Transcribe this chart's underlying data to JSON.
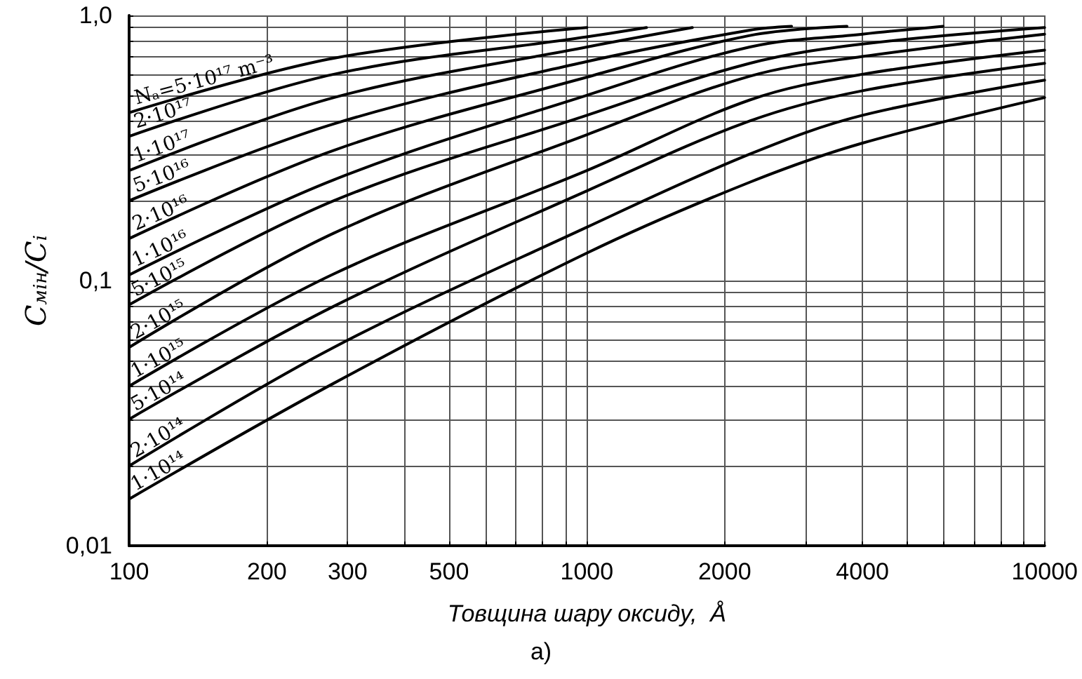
{
  "chart_data": {
    "type": "line",
    "xlabel": "Товщина шару оксиду,  Å",
    "ylabel": "C$_{мін}$/C$_{i}$",
    "annotations": [
      "а)"
    ],
    "log": "xy",
    "grid": true,
    "marker": "none",
    "legend": false,
    "xlim": [
      100,
      10000
    ],
    "ylim": [
      0.01,
      1
    ],
    "xticks": [
      100,
      200,
      300,
      {
        "value": 400,
        "label": null
      },
      500,
      {
        "value": 600,
        "label": null
      },
      {
        "value": 700,
        "label": null
      },
      {
        "value": 800,
        "label": null
      },
      {
        "value": 900,
        "label": null
      },
      1000,
      2000,
      {
        "value": 3000,
        "label": null
      },
      4000,
      {
        "value": 5000,
        "label": null
      },
      {
        "value": 6000,
        "label": null
      },
      {
        "value": 7000,
        "label": null
      },
      {
        "value": 8000,
        "label": null
      },
      {
        "value": 9000,
        "label": null
      },
      10000
    ],
    "yticks": [
      {
        "value": 0.01,
        "label": "0,01"
      },
      {
        "value": 0.02,
        "label": null
      },
      {
        "value": 0.03,
        "label": null
      },
      {
        "value": 0.04,
        "label": null
      },
      {
        "value": 0.05,
        "label": null
      },
      {
        "value": 0.06,
        "label": null
      },
      {
        "value": 0.07,
        "label": null
      },
      {
        "value": 0.08,
        "label": null
      },
      {
        "value": 0.09,
        "label": null
      },
      {
        "value": 0.1,
        "label": "0,1"
      },
      {
        "value": 0.2,
        "label": null
      },
      {
        "value": 0.3,
        "label": null
      },
      {
        "value": 0.4,
        "label": null
      },
      {
        "value": 0.5,
        "label": null
      },
      {
        "value": 0.6,
        "label": null
      },
      {
        "value": 0.7,
        "label": null
      },
      {
        "value": 0.8,
        "label": null
      },
      {
        "value": 0.9,
        "label": null
      },
      {
        "value": 1,
        "label": "1,0"
      }
    ],
    "series": [
      {
        "name": "Nₐ=5·10¹⁷ m⁻³",
        "color": "#000000",
        "x": [
          100,
          280,
          1000
        ],
        "values": [
          0.43,
          0.69,
          0.9
        ]
      },
      {
        "name": "2·10¹⁷",
        "color": "#000000",
        "x": [
          100,
          280,
          1000,
          1350
        ],
        "values": [
          0.35,
          0.6,
          0.83,
          0.9
        ]
      },
      {
        "name": "1·10¹⁷",
        "color": "#000000",
        "x": [
          100,
          280,
          1000,
          1700
        ],
        "values": [
          0.26,
          0.49,
          0.76,
          0.9
        ]
      },
      {
        "name": "5·10¹⁶",
        "color": "#000000",
        "x": [
          100,
          280,
          1000,
          2270,
          2800
        ],
        "values": [
          0.2,
          0.39,
          0.67,
          0.88,
          0.91
        ]
      },
      {
        "name": "2·10¹⁶",
        "color": "#000000",
        "x": [
          100,
          280,
          1000,
          2270,
          3700
        ],
        "values": [
          0.144,
          0.31,
          0.585,
          0.84,
          0.91
        ]
      },
      {
        "name": "1·10¹⁶",
        "color": "#000000",
        "x": [
          100,
          280,
          1000,
          2270,
          4000,
          6000
        ],
        "values": [
          0.105,
          0.24,
          0.5,
          0.76,
          0.85,
          0.91
        ]
      },
      {
        "name": "5·10¹⁵",
        "color": "#000000",
        "x": [
          100,
          280,
          1000,
          2270,
          4000,
          10000
        ],
        "values": [
          0.081,
          0.2,
          0.42,
          0.66,
          0.78,
          0.9
        ]
      },
      {
        "name": "2·10¹⁵",
        "color": "#000000",
        "x": [
          100,
          280,
          1000,
          2270,
          4000,
          10000
        ],
        "values": [
          0.056,
          0.151,
          0.355,
          0.59,
          0.7,
          0.85
        ]
      },
      {
        "name": "1·10¹⁵",
        "color": "#000000",
        "x": [
          100,
          280,
          1000,
          2270,
          4000,
          10000
        ],
        "values": [
          0.04,
          0.106,
          0.26,
          0.48,
          0.6,
          0.74
        ]
      },
      {
        "name": "5·10¹⁴",
        "color": "#000000",
        "x": [
          100,
          280,
          1000,
          2270,
          4000,
          10000
        ],
        "values": [
          0.03,
          0.08,
          0.218,
          0.4,
          0.52,
          0.66
        ]
      },
      {
        "name": "2·10¹⁴",
        "color": "#000000",
        "x": [
          100,
          280,
          1000,
          2270,
          4000,
          10000
        ],
        "values": [
          0.02,
          0.056,
          0.159,
          0.3,
          0.42,
          0.57
        ]
      },
      {
        "name": "1·10¹⁴",
        "color": "#000000",
        "x": [
          100,
          280,
          1000,
          2270,
          4000,
          10000
        ],
        "values": [
          0.015,
          0.041,
          0.127,
          0.235,
          0.33,
          0.49
        ]
      }
    ]
  }
}
